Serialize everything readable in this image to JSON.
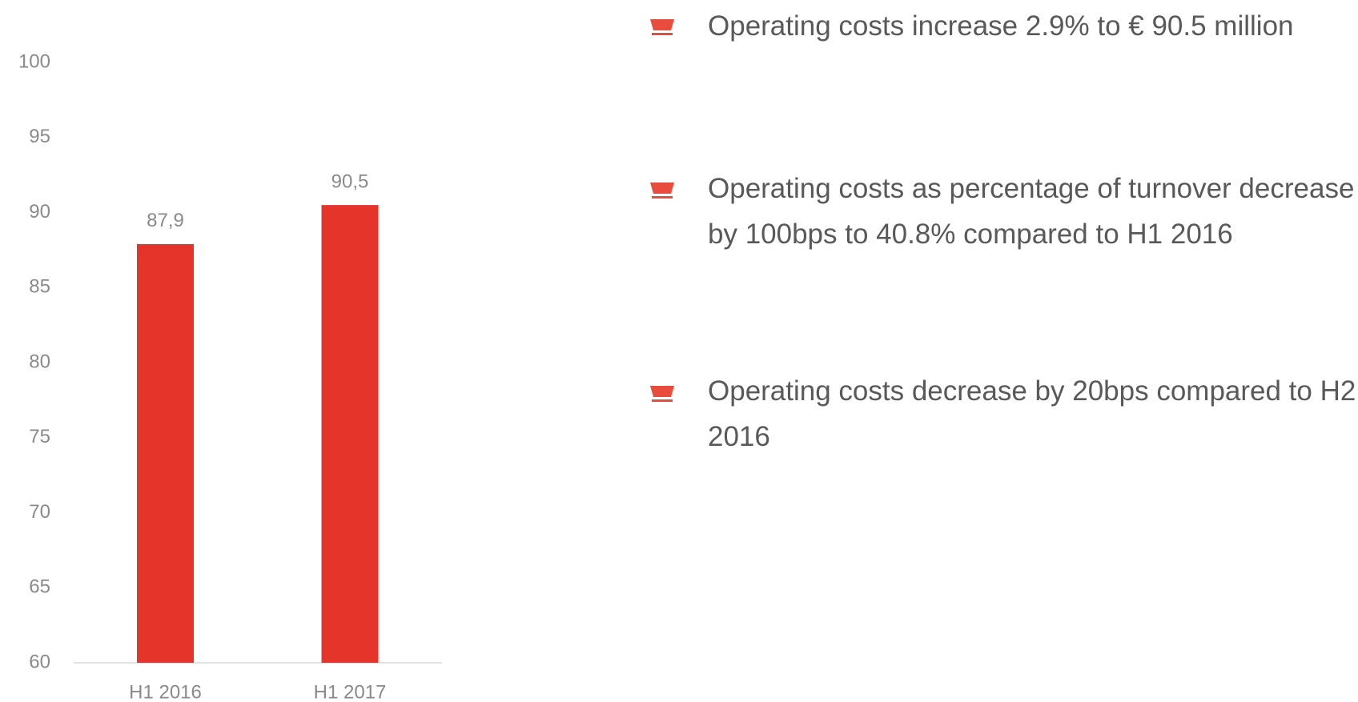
{
  "chart_data": {
    "type": "bar",
    "categories": [
      "H1 2016",
      "H1 2017"
    ],
    "values": [
      87.9,
      90.5
    ],
    "value_labels": [
      "87,9",
      "90,5"
    ],
    "color": "#e5352b",
    "ylim": [
      60,
      100
    ],
    "yticks": [
      60,
      65,
      70,
      75,
      80,
      85,
      90,
      95,
      100
    ],
    "grid": false
  },
  "bullets": [
    "Operating costs increase 2.9% to € 90.5 million",
    "Operating costs as percentage of turnover decrease by 100bps to 40.8% compared to H1 2016",
    "Operating costs decrease by 20bps compared to H2 2016"
  ]
}
